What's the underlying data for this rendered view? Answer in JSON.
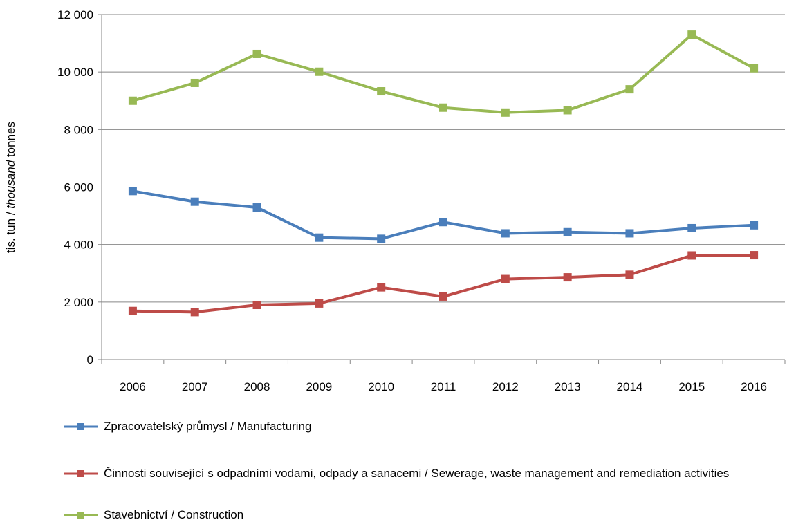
{
  "chart_data": {
    "type": "line",
    "ylabel_prefix": "tis. tun / ",
    "ylabel_italic": "thousand",
    "ylabel_suffix": " tonnes",
    "ylim": [
      0,
      12000
    ],
    "yticks": [
      0,
      2000,
      4000,
      6000,
      8000,
      10000,
      12000
    ],
    "ytick_labels": [
      "0",
      "2 000",
      "4 000",
      "6 000",
      "8 000",
      "10 000",
      "12 000"
    ],
    "categories": [
      "2006",
      "2007",
      "2008",
      "2009",
      "2010",
      "2011",
      "2012",
      "2013",
      "2014",
      "2015",
      "2016"
    ],
    "grid": true,
    "legend_position": "bottom",
    "series": [
      {
        "name": "Zpracovatelský průmysl / Manufacturing",
        "color": "#4a7ebb",
        "marker": "square",
        "values": [
          5860,
          5490,
          5290,
          4240,
          4200,
          4780,
          4390,
          4430,
          4390,
          4570,
          4670
        ]
      },
      {
        "name": "Činnosti související s odpadními vodami, odpady a sanacemi / Sewerage, waste management and remediation activities",
        "color": "#be4b48",
        "marker": "square",
        "values": [
          1690,
          1650,
          1900,
          1950,
          2510,
          2190,
          2800,
          2860,
          2950,
          3620,
          3630
        ]
      },
      {
        "name": "Stavebnictví / Construction",
        "color": "#98b954",
        "marker": "square",
        "values": [
          9000,
          9620,
          10630,
          10010,
          9330,
          8760,
          8590,
          8670,
          9400,
          11300,
          10130
        ]
      }
    ]
  }
}
